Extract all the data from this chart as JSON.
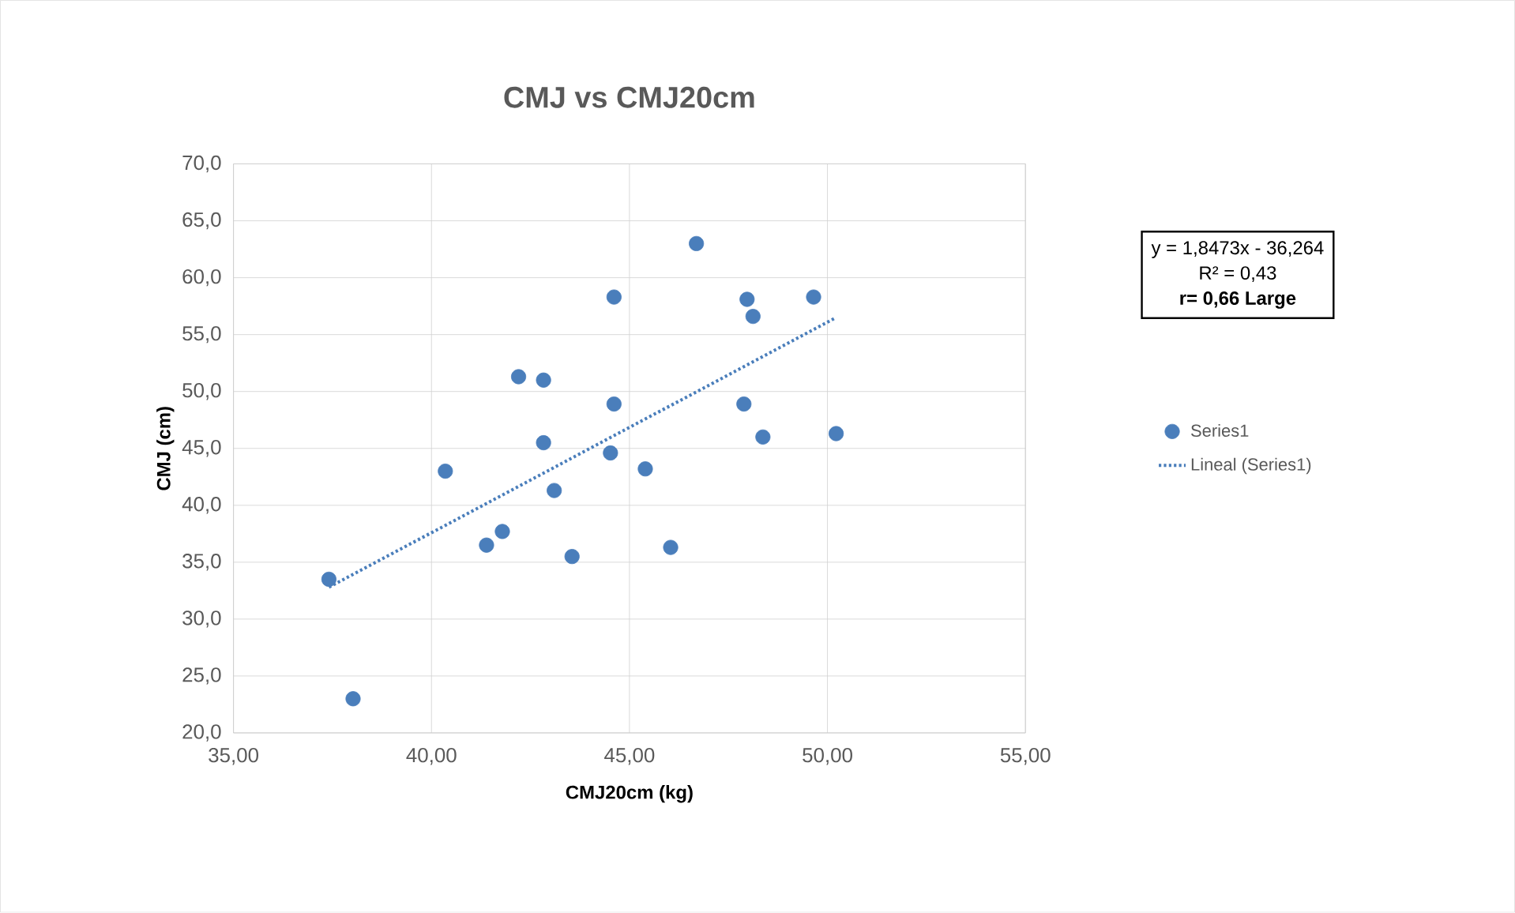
{
  "chart_data": {
    "type": "scatter",
    "title": "CMJ vs CMJ20cm",
    "xlabel": "CMJ20cm (kg)",
    "ylabel": "CMJ (cm)",
    "xlim": [
      35,
      55
    ],
    "ylim": [
      20,
      70
    ],
    "xticks": [
      {
        "value": 35,
        "label": "35,00"
      },
      {
        "value": 40,
        "label": "40,00"
      },
      {
        "value": 45,
        "label": "45,00"
      },
      {
        "value": 50,
        "label": "50,00"
      },
      {
        "value": 55,
        "label": "55,00"
      }
    ],
    "yticks": [
      {
        "value": 20,
        "label": "20,0"
      },
      {
        "value": 25,
        "label": "25,0"
      },
      {
        "value": 30,
        "label": "30,0"
      },
      {
        "value": 35,
        "label": "35,0"
      },
      {
        "value": 40,
        "label": "40,0"
      },
      {
        "value": 45,
        "label": "45,0"
      },
      {
        "value": 50,
        "label": "50,0"
      },
      {
        "value": 55,
        "label": "55,0"
      },
      {
        "value": 60,
        "label": "60,0"
      },
      {
        "value": 65,
        "label": "65,0"
      },
      {
        "value": 70,
        "label": "70,0"
      }
    ],
    "grid": true,
    "legend": "right",
    "series": [
      {
        "name": "Series1",
        "marker": "circle",
        "color": "#4a7ebb",
        "x": [
          37.41,
          38.02,
          40.35,
          41.39,
          41.79,
          42.2,
          42.83,
          42.83,
          43.1,
          43.55,
          44.61,
          44.61,
          44.52,
          45.4,
          46.04,
          46.69,
          47.97,
          48.12,
          47.89,
          48.37,
          49.65,
          50.22
        ],
        "values": [
          33.5,
          23.0,
          43.0,
          36.5,
          37.7,
          51.3,
          51.0,
          45.5,
          41.3,
          35.5,
          58.3,
          48.9,
          44.6,
          43.2,
          36.3,
          63.0,
          58.1,
          56.6,
          48.9,
          46.0,
          58.3,
          46.3
        ]
      },
      {
        "name": "Lineal (Series1)",
        "type": "line",
        "line_style": "dotted",
        "marker": "none",
        "color": "#4a7ebb",
        "x": [
          37.41,
          50.22
        ],
        "values": [
          32.8,
          56.5
        ]
      }
    ],
    "annotations": [
      "y = 1,8473x - 36,264",
      "R² = 0,43",
      "**r= 0,66 Large**"
    ]
  }
}
